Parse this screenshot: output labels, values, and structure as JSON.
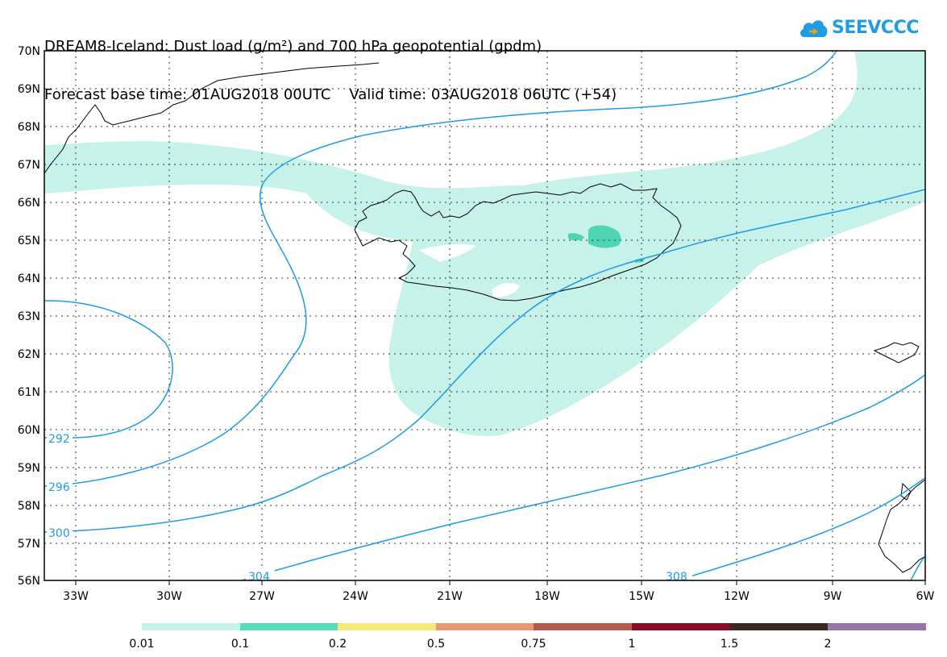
{
  "header": {
    "line1": "DREAM8-Iceland: Dust load (g/m²) and 700 hPa geopotential (gpdm)",
    "line2_left": "Forecast base time: 01AUG2018 00UTC",
    "line2_right": "Valid time: 03AUG2018 06UTC (+54)"
  },
  "logo": {
    "text": "SEEVCCC",
    "icon": "cloud-icon",
    "color": "#1f9ce6"
  },
  "map": {
    "lat_labels": [
      "70N",
      "69N",
      "68N",
      "67N",
      "66N",
      "65N",
      "64N",
      "63N",
      "62N",
      "61N",
      "60N",
      "59N",
      "58N",
      "57N",
      "56N"
    ],
    "lon_labels": [
      "33W",
      "30W",
      "27W",
      "24W",
      "21W",
      "18W",
      "15W",
      "12W",
      "9W",
      "6W"
    ],
    "contour_labels": [
      "292",
      "296",
      "300",
      "304",
      "308"
    ],
    "contour_color": "#1e9be8",
    "dust_light_color": "#c6f2ea",
    "dust_mid_color": "#4ed6b4"
  },
  "legend": {
    "colors": [
      "#c6f2ea",
      "#57dbb8",
      "#f6ea7c",
      "#e69a74",
      "#b05a52",
      "#8a0a2a",
      "#3a2820",
      "#9475a6"
    ],
    "labels": [
      "0.01",
      "0.1",
      "0.2",
      "0.5",
      "0.75",
      "1",
      "1.5",
      "2"
    ]
  }
}
